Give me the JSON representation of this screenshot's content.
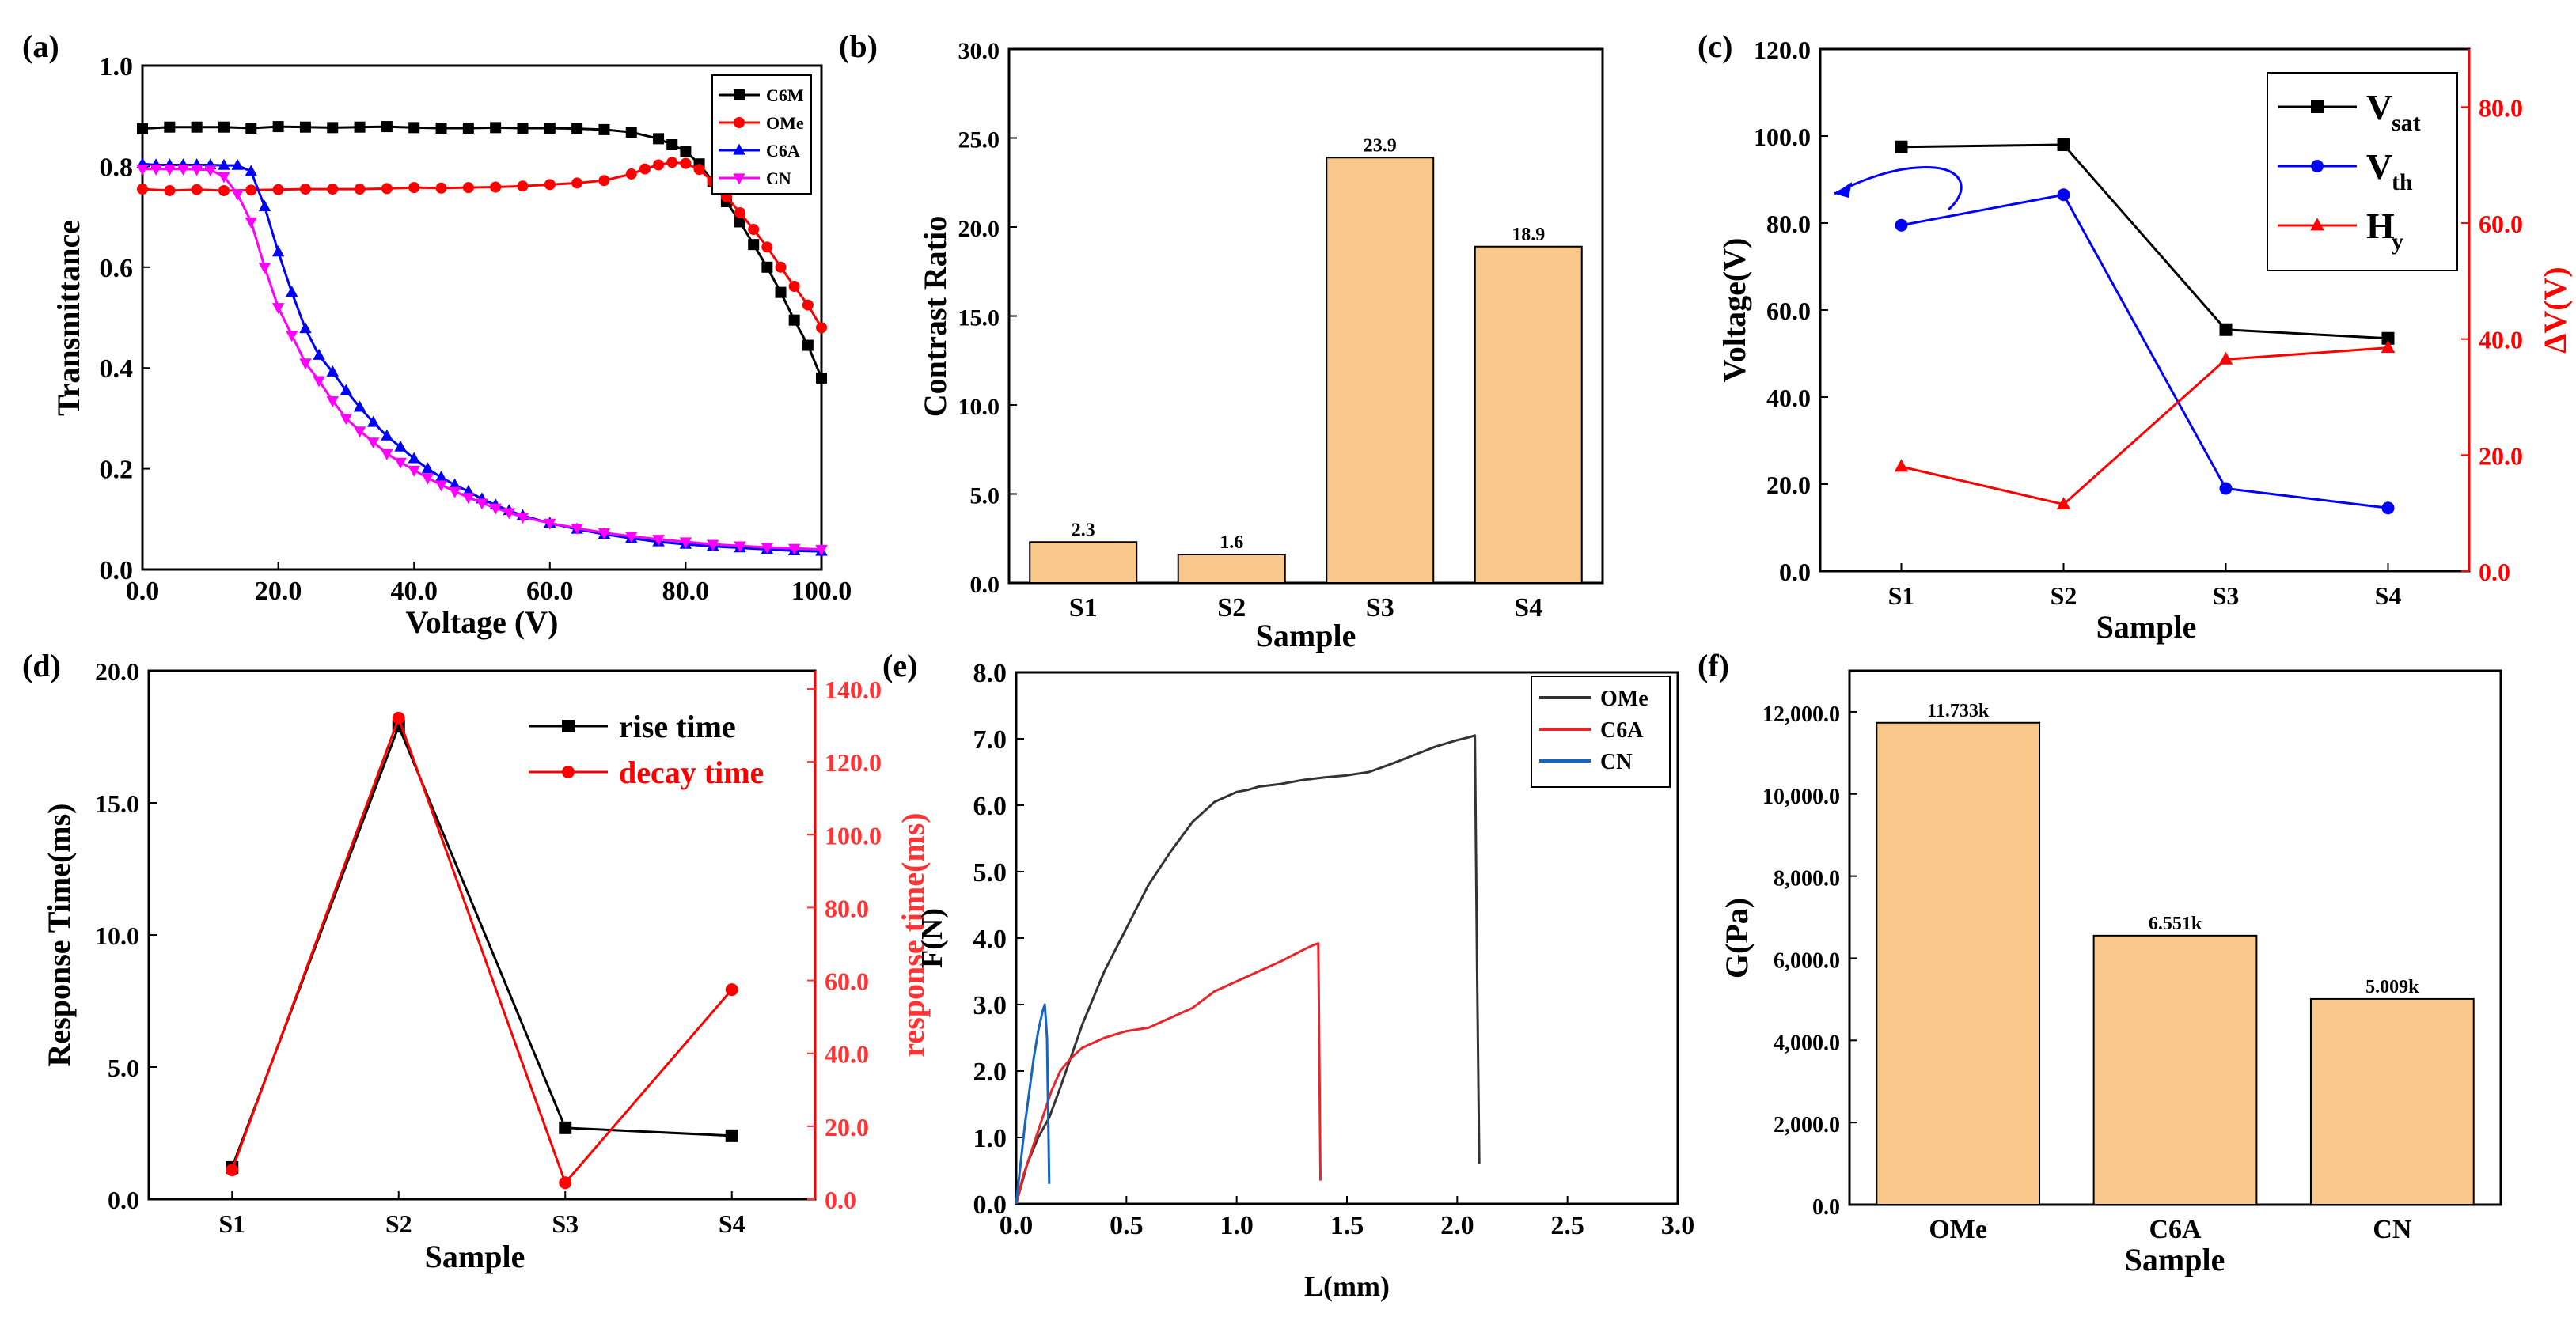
{
  "figure": {
    "background": "#ffffff"
  },
  "colors": {
    "black": "#000000",
    "red": "#ff0000",
    "blue": "#0000ff",
    "magenta": "#ff00ff",
    "bar_fill": "#fbc88c",
    "axis": "#000000",
    "dark_gray": "#333333",
    "tensile_red": "#e8262a",
    "tensile_blue": "#1565c0"
  },
  "chart_data": [
    {
      "id": "a",
      "panel_label": "(a)",
      "type": "line",
      "xlabel": "Voltage (V)",
      "ylabel": "Transmittance",
      "xlim": [
        0,
        100
      ],
      "ylim": [
        0,
        1.0
      ],
      "xticks": [
        "0.0",
        "20.0",
        "40.0",
        "60.0",
        "80.0",
        "100.0"
      ],
      "yticks": [
        "0.0",
        "0.2",
        "0.4",
        "0.6",
        "0.8",
        "1.0"
      ],
      "legend_position": "top-right",
      "series": [
        {
          "name": "C6M",
          "color": "#000000",
          "marker": "square",
          "x": [
            0,
            4,
            8,
            12,
            16,
            20,
            24,
            28,
            32,
            36,
            40,
            44,
            48,
            52,
            56,
            60,
            64,
            68,
            72,
            76,
            78,
            80,
            82,
            84,
            86,
            88,
            90,
            92,
            94,
            96,
            98,
            100
          ],
          "y": [
            0.875,
            0.878,
            0.878,
            0.878,
            0.876,
            0.879,
            0.878,
            0.877,
            0.878,
            0.879,
            0.877,
            0.876,
            0.876,
            0.877,
            0.876,
            0.876,
            0.875,
            0.873,
            0.868,
            0.855,
            0.843,
            0.83,
            0.805,
            0.77,
            0.73,
            0.69,
            0.645,
            0.6,
            0.55,
            0.495,
            0.445,
            0.38
          ]
        },
        {
          "name": "OMe",
          "color": "#ff0000",
          "marker": "circle",
          "x": [
            0,
            4,
            8,
            12,
            16,
            20,
            24,
            28,
            32,
            36,
            40,
            44,
            48,
            52,
            56,
            60,
            64,
            68,
            72,
            74,
            76,
            78,
            80,
            82,
            84,
            86,
            88,
            90,
            92,
            94,
            96,
            98,
            100
          ],
          "y": [
            0.755,
            0.752,
            0.754,
            0.752,
            0.753,
            0.754,
            0.755,
            0.755,
            0.755,
            0.756,
            0.758,
            0.757,
            0.758,
            0.759,
            0.761,
            0.764,
            0.767,
            0.772,
            0.785,
            0.795,
            0.803,
            0.808,
            0.806,
            0.794,
            0.77,
            0.74,
            0.708,
            0.675,
            0.64,
            0.6,
            0.562,
            0.525,
            0.48
          ]
        },
        {
          "name": "C6A",
          "color": "#0000ff",
          "marker": "triangle-up",
          "x": [
            0,
            2,
            4,
            6,
            8,
            10,
            12,
            14,
            16,
            18,
            20,
            22,
            24,
            26,
            28,
            30,
            32,
            34,
            36,
            38,
            40,
            42,
            44,
            46,
            48,
            50,
            52,
            54,
            56,
            60,
            64,
            68,
            72,
            76,
            80,
            84,
            88,
            92,
            96,
            100
          ],
          "y": [
            0.805,
            0.803,
            0.803,
            0.803,
            0.803,
            0.803,
            0.802,
            0.802,
            0.79,
            0.72,
            0.63,
            0.55,
            0.478,
            0.425,
            0.392,
            0.355,
            0.322,
            0.292,
            0.265,
            0.243,
            0.22,
            0.2,
            0.183,
            0.168,
            0.155,
            0.14,
            0.128,
            0.117,
            0.107,
            0.092,
            0.08,
            0.07,
            0.062,
            0.055,
            0.05,
            0.046,
            0.043,
            0.04,
            0.037,
            0.036
          ]
        },
        {
          "name": "CN",
          "color": "#ff00ff",
          "marker": "triangle-down",
          "x": [
            0,
            2,
            4,
            6,
            8,
            10,
            12,
            14,
            16,
            18,
            20,
            22,
            24,
            26,
            28,
            30,
            32,
            34,
            36,
            38,
            40,
            42,
            44,
            46,
            48,
            50,
            52,
            54,
            56,
            60,
            64,
            68,
            72,
            76,
            80,
            84,
            88,
            92,
            96,
            100
          ],
          "y": [
            0.795,
            0.795,
            0.795,
            0.795,
            0.794,
            0.793,
            0.78,
            0.745,
            0.69,
            0.6,
            0.52,
            0.465,
            0.41,
            0.375,
            0.335,
            0.3,
            0.275,
            0.253,
            0.23,
            0.213,
            0.197,
            0.182,
            0.168,
            0.155,
            0.143,
            0.132,
            0.122,
            0.113,
            0.104,
            0.092,
            0.082,
            0.073,
            0.066,
            0.06,
            0.055,
            0.05,
            0.047,
            0.044,
            0.042,
            0.04
          ]
        }
      ]
    },
    {
      "id": "b",
      "panel_label": "(b)",
      "type": "bar",
      "xlabel": "Sample",
      "ylabel": "Contrast Ratio",
      "categories": [
        "S1",
        "S2",
        "S3",
        "S4"
      ],
      "values": [
        2.3,
        1.6,
        23.9,
        18.9
      ],
      "value_labels": [
        "2.3",
        "1.6",
        "23.9",
        "18.9"
      ],
      "ylim": [
        0,
        30
      ],
      "yticks": [
        "0.0",
        "5.0",
        "10.0",
        "15.0",
        "20.0",
        "25.0",
        "30.0"
      ]
    },
    {
      "id": "c",
      "panel_label": "(c)",
      "type": "line",
      "xlabel": "Sample",
      "ylabel": "Voltage(V)",
      "ylabel_right": "ΔV(V)",
      "categories": [
        "S1",
        "S2",
        "S3",
        "S4"
      ],
      "ylim": [
        0,
        120
      ],
      "ylim_right": [
        0,
        90
      ],
      "yticks": [
        "0.0",
        "20.0",
        "40.0",
        "60.0",
        "80.0",
        "100.0",
        "120.0"
      ],
      "yticks_right": [
        "0.0",
        "20.0",
        "40.0",
        "60.0",
        "80.0"
      ],
      "legend_position": "top-right",
      "series": [
        {
          "name": "V",
          "sub": "sat",
          "color": "#000000",
          "marker": "square",
          "axis": "left",
          "values": [
            97.5,
            98,
            55.5,
            53.5
          ]
        },
        {
          "name": "V",
          "sub": "th",
          "color": "#0000ff",
          "marker": "circle",
          "axis": "left",
          "values": [
            79.5,
            86.5,
            19,
            14.5
          ]
        },
        {
          "name": "H",
          "sub": "y",
          "color": "#ff0000",
          "marker": "triangle-up",
          "axis": "right",
          "values": [
            18,
            11.5,
            36.5,
            38.5
          ]
        }
      ]
    },
    {
      "id": "d",
      "panel_label": "(d)",
      "type": "line",
      "xlabel": "Sample",
      "ylabel": "Response Time(ms)",
      "ylabel_right": "response time(ms)",
      "categories": [
        "S1",
        "S2",
        "S3",
        "S4"
      ],
      "ylim": [
        0,
        20
      ],
      "ylim_right": [
        0,
        145
      ],
      "yticks": [
        "0.0",
        "5.0",
        "10.0",
        "15.0",
        "20.0"
      ],
      "yticks_right": [
        "0.0",
        "20.0",
        "40.0",
        "60.0",
        "80.0",
        "100.0",
        "120.0",
        "140.0"
      ],
      "legend_position": "top-right",
      "series": [
        {
          "name": "rise time",
          "color": "#000000",
          "marker": "square",
          "axis": "left",
          "values": [
            1.2,
            17.9,
            2.7,
            2.4
          ]
        },
        {
          "name": "decay time",
          "color": "#ff0000",
          "marker": "circle",
          "axis": "right",
          "values": [
            8,
            132,
            4.5,
            57.5
          ]
        }
      ]
    },
    {
      "id": "e",
      "panel_label": "(e)",
      "type": "line",
      "xlabel": "L(mm)",
      "ylabel": "F(N)",
      "xlim": [
        0,
        3.0
      ],
      "ylim": [
        0,
        8.0
      ],
      "xticks": [
        "0.0",
        "0.5",
        "1.0",
        "1.5",
        "2.0",
        "2.5",
        "3.0"
      ],
      "yticks": [
        "0.0",
        "1.0",
        "2.0",
        "3.0",
        "4.0",
        "5.0",
        "6.0",
        "7.0",
        "8.0"
      ],
      "legend_position": "top-right",
      "series": [
        {
          "name": "OMe",
          "color": "#333333",
          "x": [
            0,
            0.05,
            0.1,
            0.15,
            0.2,
            0.3,
            0.4,
            0.5,
            0.6,
            0.7,
            0.8,
            0.9,
            1.0,
            1.05,
            1.1,
            1.2,
            1.3,
            1.4,
            1.5,
            1.6,
            1.7,
            1.8,
            1.9,
            2.0,
            2.05,
            2.08,
            2.09,
            2.1
          ],
          "y": [
            0,
            0.6,
            1.0,
            1.3,
            1.75,
            2.7,
            3.5,
            4.15,
            4.8,
            5.3,
            5.75,
            6.05,
            6.2,
            6.23,
            6.28,
            6.32,
            6.38,
            6.42,
            6.45,
            6.5,
            6.62,
            6.75,
            6.88,
            6.98,
            7.02,
            7.05,
            3.5,
            0.6
          ]
        },
        {
          "name": "C6A",
          "color": "#e8262a",
          "x": [
            0,
            0.03,
            0.08,
            0.12,
            0.16,
            0.2,
            0.25,
            0.3,
            0.4,
            0.5,
            0.6,
            0.7,
            0.8,
            0.9,
            1.0,
            1.1,
            1.2,
            1.3,
            1.35,
            1.37,
            1.38
          ],
          "y": [
            0,
            0.4,
            0.9,
            1.3,
            1.7,
            2.0,
            2.2,
            2.35,
            2.5,
            2.6,
            2.65,
            2.8,
            2.95,
            3.2,
            3.35,
            3.5,
            3.65,
            3.82,
            3.9,
            3.92,
            0.35
          ]
        },
        {
          "name": "CN",
          "color": "#1565c0",
          "x": [
            0,
            0.02,
            0.04,
            0.06,
            0.08,
            0.1,
            0.12,
            0.13,
            0.14,
            0.15
          ],
          "y": [
            0,
            0.6,
            1.2,
            1.7,
            2.2,
            2.6,
            2.9,
            3.0,
            2.5,
            0.3
          ]
        }
      ]
    },
    {
      "id": "f",
      "panel_label": "(f)",
      "type": "bar",
      "xlabel": "Sample",
      "ylabel": "G(Pa)",
      "categories": [
        "OMe",
        "C6A",
        "CN"
      ],
      "values": [
        11733,
        6551,
        5009
      ],
      "value_labels": [
        "11.733k",
        "6.551k",
        "5.009k"
      ],
      "ylim": [
        0,
        13000
      ],
      "yticks": [
        "0.0",
        "2,000.0",
        "4,000.0",
        "6,000.0",
        "8,000.0",
        "10,000.0",
        "12,000.0"
      ]
    }
  ]
}
